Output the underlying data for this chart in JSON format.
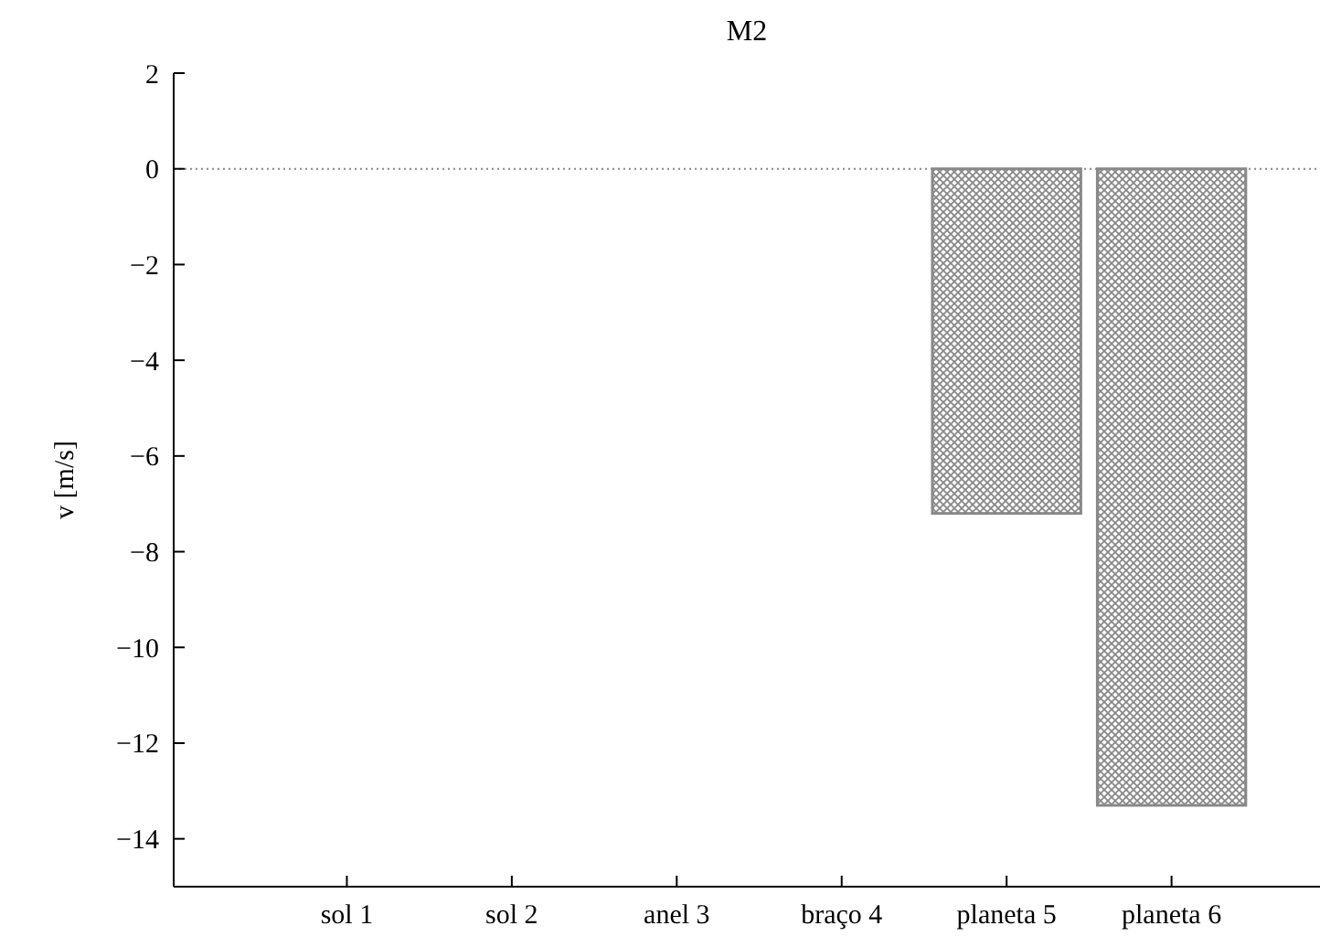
{
  "chart_data": {
    "type": "bar",
    "title": "M2",
    "ylabel": "v [m/s]",
    "categories": [
      "sol 1",
      "sol 2",
      "anel 3",
      "braço 4",
      "planeta 5",
      "planeta 6"
    ],
    "values": [
      0,
      0,
      0,
      0,
      -7.2,
      -13.3
    ],
    "color": "#888888",
    "ylim": [
      -15,
      2
    ],
    "yticks": [
      {
        "value": 2,
        "label": "2"
      },
      {
        "value": 0,
        "label": "0"
      },
      {
        "value": -2,
        "label": "−2"
      },
      {
        "value": -4,
        "label": "−4"
      },
      {
        "value": -6,
        "label": "−6"
      },
      {
        "value": -8,
        "label": "−8"
      },
      {
        "value": -10,
        "label": "−10"
      },
      {
        "value": -12,
        "label": "−12"
      },
      {
        "value": -14,
        "label": "−14"
      }
    ],
    "ref_lines": [
      {
        "axis": "y",
        "value": 0,
        "color": "#888888",
        "line_style": "dotted"
      }
    ]
  }
}
